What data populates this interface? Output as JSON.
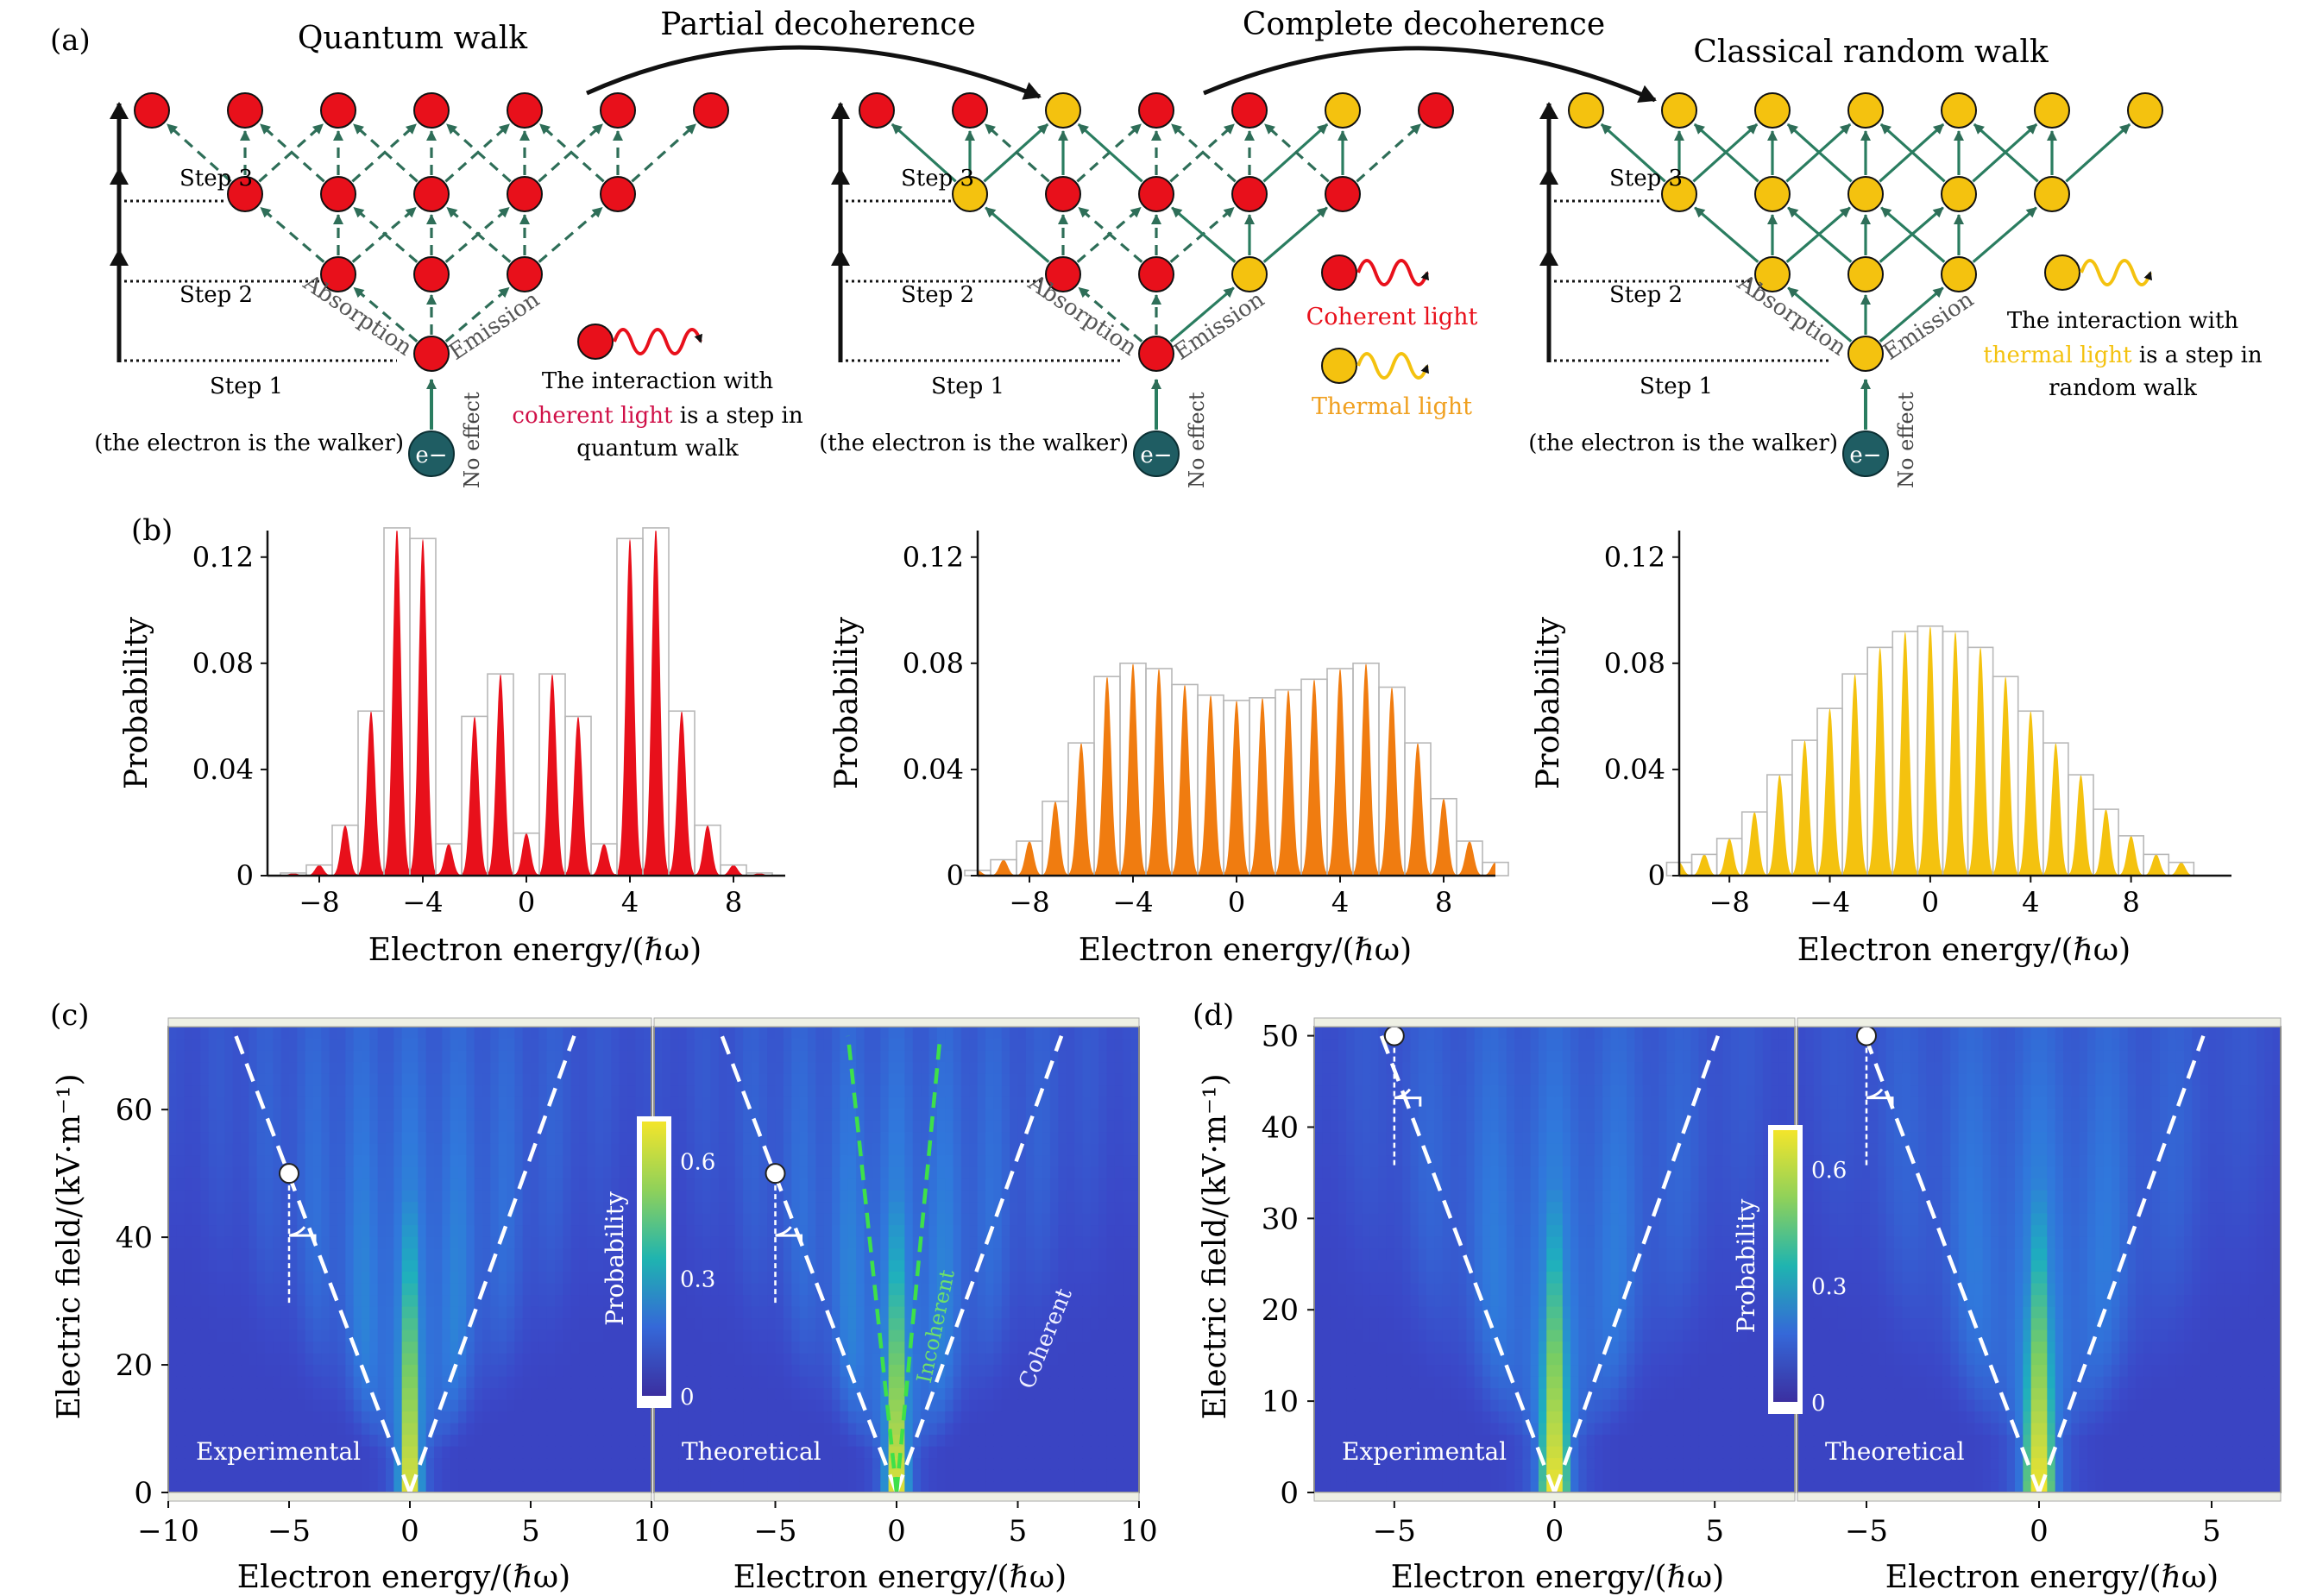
{
  "panels": {
    "a": "(a)",
    "b": "(b)",
    "c": "(c)",
    "d": "(d)"
  },
  "walk": {
    "titles": [
      "Quantum walk",
      "Classical random walk"
    ],
    "arrow_labels": [
      "Partial decoherence",
      "Complete decoherence"
    ],
    "step_labels": [
      "Step 3",
      "Step 2",
      "Step 1"
    ],
    "absorption": "Absorption",
    "emission": "Emission",
    "no_effect": "No effect",
    "walker_note": "(the electron is the walker)",
    "electron": "e−",
    "note_coherent": {
      "line1": "The interaction with",
      "highlight": "coherent light",
      "rest": "is a step in",
      "line3": "quantum walk"
    },
    "note_thermal": {
      "line1": "The interaction with",
      "highlight": "thermal light",
      "rest": "is a step in",
      "line3": "random walk"
    },
    "legend_coherent": "Coherent light",
    "legend_thermal": "Thermal light"
  },
  "axes": {
    "probability": "Probability",
    "electron_energy": "Electron energy/(ℏω)",
    "electric_field": "Electric field/(kV·m⁻¹)"
  },
  "heatmap_labels": {
    "experimental": "Experimental",
    "theoretical": "Theoretical",
    "incoherent": "Incoherent",
    "coherent": "Coherent",
    "colorbar_title": "Probability",
    "colorbar_ticks": [
      "0.6",
      "0.3",
      "0"
    ]
  },
  "colors": {
    "quantum_red": "#e8101b",
    "thermal_yellow": "#f4c20f",
    "orange": "#f07c10",
    "dashed_green": "#2e6e58",
    "solid_green": "#2a7d60",
    "electron_teal": "#1f5d63",
    "heat_background": "#3a3fb6",
    "heat_peak": "#f0e030"
  },
  "chart_data": [
    {
      "type": "bar",
      "subtype": "histogram-with-filled-curve",
      "panel": "b-left",
      "color": "#e8101b",
      "xlabel": "Electron energy/(ℏω)",
      "ylabel": "Probability",
      "xlim": [
        -10,
        10
      ],
      "ylim": [
        0,
        0.13
      ],
      "xticks": [
        -8,
        -4,
        0,
        4,
        8
      ],
      "yticks": [
        0,
        0.04,
        0.08,
        0.12
      ],
      "x": [
        -9,
        -8,
        -7,
        -6,
        -5,
        -4,
        -3,
        -2,
        -1,
        0,
        1,
        2,
        3,
        4,
        5,
        6,
        7,
        8,
        9
      ],
      "values": [
        0.001,
        0.004,
        0.019,
        0.062,
        0.131,
        0.127,
        0.012,
        0.06,
        0.076,
        0.016,
        0.076,
        0.06,
        0.012,
        0.127,
        0.131,
        0.062,
        0.019,
        0.004,
        0.001
      ]
    },
    {
      "type": "bar",
      "subtype": "histogram-with-filled-curve",
      "panel": "b-middle",
      "color": "#f07c10",
      "xlabel": "Electron energy/(ℏω)",
      "ylabel": "Probability",
      "xlim": [
        -10,
        10
      ],
      "ylim": [
        0,
        0.13
      ],
      "xticks": [
        -8,
        -4,
        0,
        4,
        8
      ],
      "yticks": [
        0,
        0.04,
        0.08,
        0.12
      ],
      "x": [
        -10,
        -9,
        -8,
        -7,
        -6,
        -5,
        -4,
        -3,
        -2,
        -1,
        0,
        1,
        2,
        3,
        4,
        5,
        6,
        7,
        8,
        9,
        10
      ],
      "values": [
        0.002,
        0.006,
        0.013,
        0.028,
        0.05,
        0.075,
        0.08,
        0.078,
        0.072,
        0.068,
        0.066,
        0.067,
        0.07,
        0.074,
        0.078,
        0.08,
        0.071,
        0.05,
        0.029,
        0.013,
        0.005
      ]
    },
    {
      "type": "bar",
      "subtype": "histogram-with-filled-curve",
      "panel": "b-right",
      "color": "#f4c20f",
      "xlabel": "Electron energy/(ℏω)",
      "ylabel": "Probability",
      "xlim": [
        -10,
        12
      ],
      "ylim": [
        0,
        0.13
      ],
      "xticks": [
        -8,
        -4,
        0,
        4,
        8
      ],
      "yticks": [
        0,
        0.04,
        0.08,
        0.12
      ],
      "x": [
        -10,
        -9,
        -8,
        -7,
        -6,
        -5,
        -4,
        -3,
        -2,
        -1,
        0,
        1,
        2,
        3,
        4,
        5,
        6,
        7,
        8,
        9,
        10
      ],
      "values": [
        0.005,
        0.008,
        0.014,
        0.024,
        0.038,
        0.051,
        0.063,
        0.076,
        0.086,
        0.092,
        0.094,
        0.092,
        0.086,
        0.075,
        0.062,
        0.05,
        0.038,
        0.025,
        0.015,
        0.008,
        0.005
      ]
    },
    {
      "type": "heatmap",
      "panel": "c-left",
      "label": "Experimental",
      "xlabel": "Electron energy/(ℏω)",
      "ylabel": "Electric field/(kV·m⁻¹)",
      "xlim": [
        -10,
        10
      ],
      "ylim": [
        0,
        73
      ],
      "xticks": [
        -10,
        -5,
        0,
        5,
        10
      ],
      "yticks": [
        0,
        20,
        40,
        60
      ],
      "dashed_bounds_slope": 10,
      "marker": {
        "x": -5,
        "y": 50
      }
    },
    {
      "type": "heatmap",
      "panel": "c-right",
      "label": "Theoretical",
      "xlabel": "Electron energy/(ℏω)",
      "xlim": [
        -10,
        10
      ],
      "ylim": [
        0,
        73
      ],
      "xticks": [
        -5,
        0,
        5,
        10
      ],
      "colorbar": {
        "range": [
          0,
          0.7
        ],
        "ticks": [
          0,
          0.3,
          0.6
        ]
      },
      "marker": {
        "x": -5,
        "y": 50
      }
    },
    {
      "type": "heatmap",
      "panel": "d-left",
      "label": "Experimental",
      "xlabel": "Electron energy/(ℏω)",
      "ylabel": "Electric field/(kV·m⁻¹)",
      "xlim": [
        -7.5,
        7.5
      ],
      "ylim": [
        0,
        51
      ],
      "xticks": [
        -5,
        0,
        5
      ],
      "yticks": [
        0,
        10,
        20,
        30,
        40,
        50
      ],
      "marker": {
        "x": -5,
        "y": 50
      }
    },
    {
      "type": "heatmap",
      "panel": "d-right",
      "label": "Theoretical",
      "xlabel": "Electron energy/(ℏω)",
      "xlim": [
        -7,
        7
      ],
      "ylim": [
        0,
        51
      ],
      "xticks": [
        -5,
        0,
        5
      ],
      "colorbar": {
        "range": [
          0,
          0.7
        ],
        "ticks": [
          0,
          0.3,
          0.6
        ]
      },
      "marker": {
        "x": -5,
        "y": 50
      }
    }
  ]
}
